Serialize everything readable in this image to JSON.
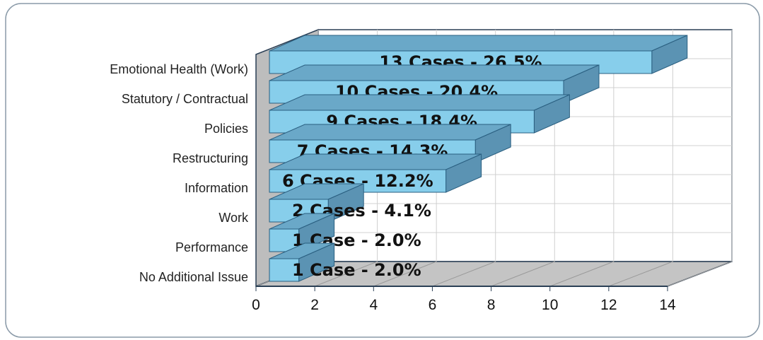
{
  "chart_data": {
    "type": "bar3d_horizontal",
    "categories": [
      "Emotional Health (Work)",
      "Statutory / Contractual",
      "Policies",
      "Restructuring",
      "Information",
      "Work",
      "Performance",
      "No Additional Issue"
    ],
    "values": [
      13,
      10,
      9,
      7,
      6,
      2,
      1,
      1
    ],
    "value_labels": [
      "13 Cases - 26.5%",
      "10 Cases - 20.4%",
      "9 Cases - 18.4%",
      "7 Cases - 14.3%",
      "6 Cases - 12.2%",
      "2 Cases - 4.1%",
      "1 Case - 2.0%",
      "1 Case - 2.0%"
    ],
    "color": "#87ceeb",
    "xlim": [
      0,
      14
    ],
    "xticks": [
      0,
      2,
      4,
      6,
      8,
      10,
      12,
      14
    ],
    "grid": true
  }
}
